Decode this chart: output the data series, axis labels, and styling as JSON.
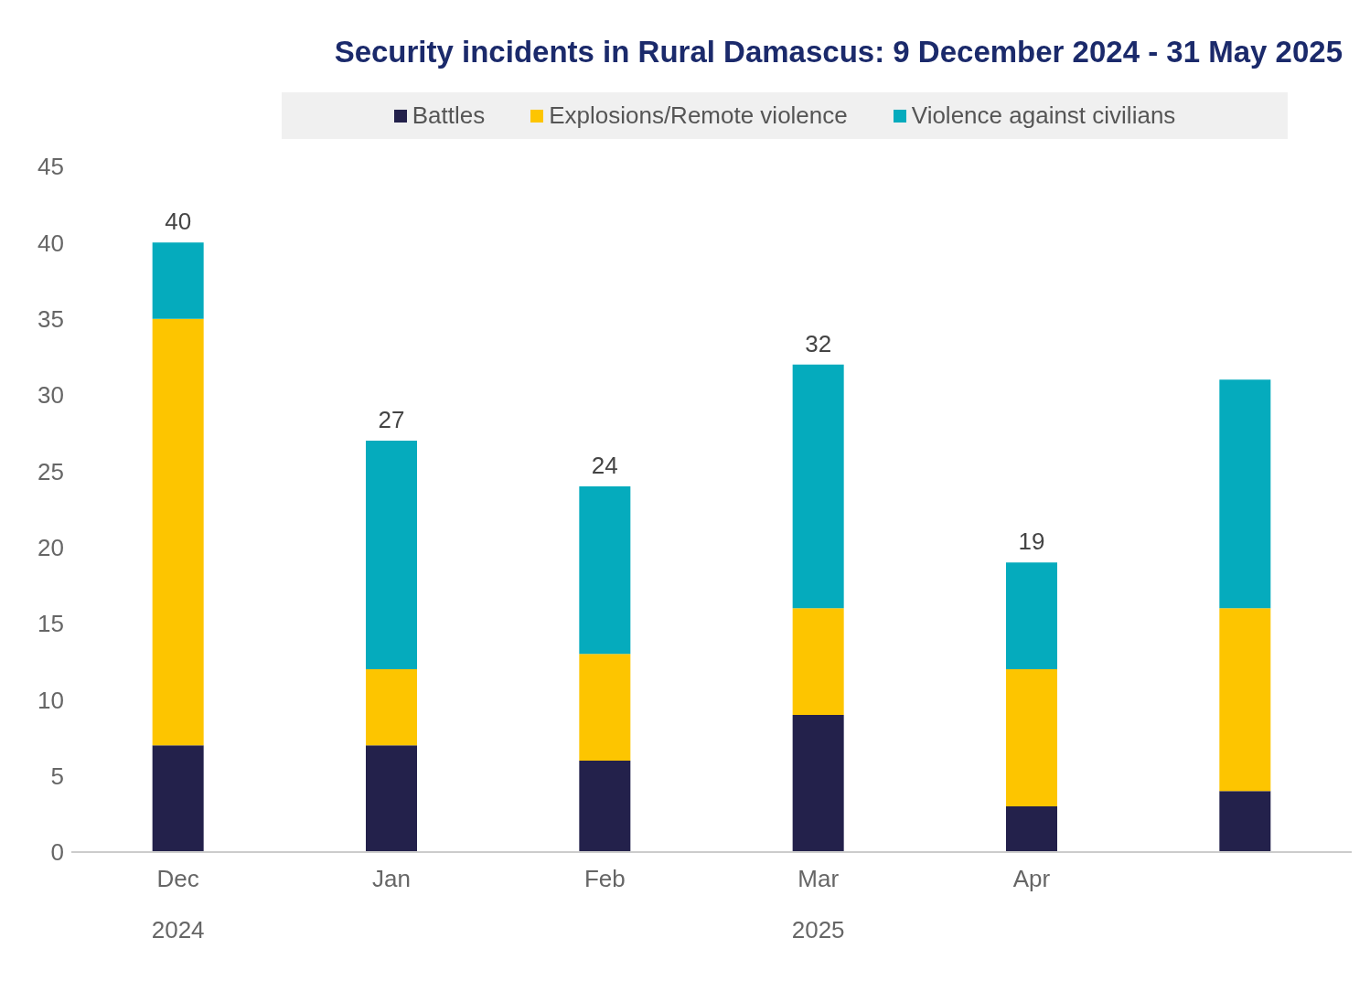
{
  "chart_data": {
    "type": "bar",
    "title": "Security incidents in Rural Damascus: 9 December 2024 - 31 May 2025",
    "categories": [
      "Dec",
      "Jan",
      "Feb",
      "Mar",
      "Apr",
      null
    ],
    "series": [
      {
        "name": "Battles",
        "color": "#23214b",
        "values": [
          7,
          7,
          6,
          9,
          3,
          4
        ]
      },
      {
        "name": "Explosions/Remote violence",
        "color": "#fdc500",
        "values": [
          28,
          5,
          7,
          7,
          9,
          12
        ]
      },
      {
        "name": "Violence against civilians",
        "color": "#05abbd",
        "values": [
          5,
          15,
          11,
          16,
          7,
          15
        ]
      }
    ],
    "stacked": true,
    "ylim": [
      0,
      45
    ],
    "yticks": [
      0,
      5,
      10,
      15,
      20,
      25,
      30,
      35,
      40,
      45
    ],
    "grid": false,
    "legend": "top",
    "totals": [
      "40",
      "27",
      "24",
      "32",
      "19",
      null
    ],
    "annotations": [
      "2024",
      "2025"
    ]
  }
}
